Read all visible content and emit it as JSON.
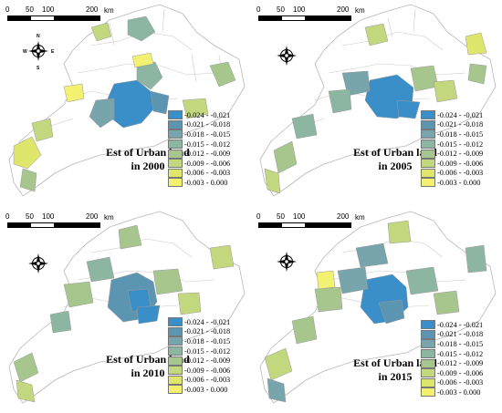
{
  "scalebar": {
    "labels": [
      "0",
      "50",
      "100",
      "200"
    ],
    "unit": "km"
  },
  "compass": {
    "n": "N",
    "s": "S",
    "e": "E",
    "w": "W",
    "icon": "compass-rose-icon"
  },
  "legend": {
    "items": [
      {
        "label": "-0.024 - -0.021",
        "color": "#3a8fc8"
      },
      {
        "label": "-0.021 - -0.018",
        "color": "#5c95b2"
      },
      {
        "label": "-0.018 - -0.015",
        "color": "#78a4ac"
      },
      {
        "label": "-0.015 - -0.012",
        "color": "#8db6a2"
      },
      {
        "label": "-0.012 - -0.009",
        "color": "#a6c68e"
      },
      {
        "label": "-0.009 - -0.006",
        "color": "#c2d77e"
      },
      {
        "label": "-0.006 - -0.003",
        "color": "#dfe66c"
      },
      {
        "label": "-0.003 - 0.000",
        "color": "#f2f270"
      }
    ]
  },
  "panels": [
    {
      "title_line1": "Est of Urban land",
      "title_line2": "in 2000"
    },
    {
      "title_line1": "Est of Urban land",
      "title_line2": "in 2005"
    },
    {
      "title_line1": "Est of Urban land",
      "title_line2": "in 2010"
    },
    {
      "title_line1": "Est of Urban land",
      "title_line2": "in 2015"
    }
  ]
}
